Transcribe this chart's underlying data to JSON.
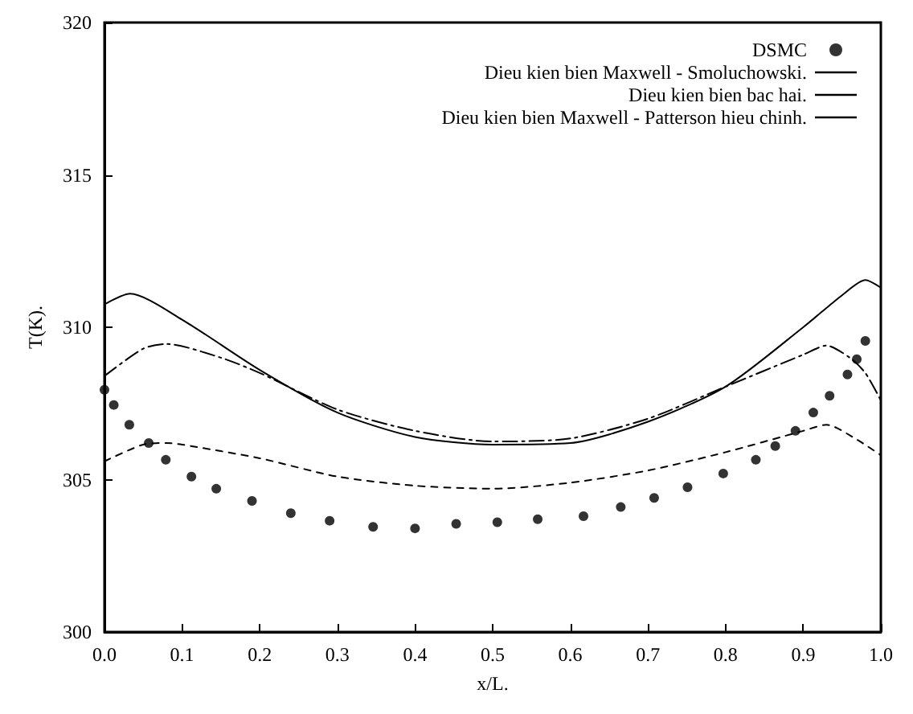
{
  "chart_data": {
    "type": "line",
    "xlabel": "x/L.",
    "ylabel": "T(K).",
    "xlim": [
      0,
      1
    ],
    "ylim": [
      300,
      320
    ],
    "xticks": [
      {
        "value": 0,
        "label": "0.0"
      },
      0.1,
      0.2,
      0.3,
      0.4,
      0.5,
      0.6,
      0.7,
      0.8,
      0.9,
      {
        "value": 1,
        "label": "1.0"
      }
    ],
    "yticks": [
      300,
      305,
      310,
      315,
      320
    ],
    "grid": false,
    "legend": "top right",
    "series": [
      {
        "name": "DSMC",
        "type": "scatter",
        "marker": "circle",
        "color": "#000000",
        "x": [
          0.0,
          0.012,
          0.032,
          0.057,
          0.079,
          0.112,
          0.144,
          0.19,
          0.24,
          0.29,
          0.346,
          0.4,
          0.453,
          0.506,
          0.558,
          0.617,
          0.665,
          0.708,
          0.751,
          0.797,
          0.839,
          0.864,
          0.89,
          0.913,
          0.934,
          0.957,
          0.969,
          0.98
        ],
        "values": [
          307.95,
          307.45,
          306.8,
          306.2,
          305.65,
          305.1,
          304.7,
          304.3,
          303.9,
          303.65,
          303.45,
          303.4,
          303.55,
          303.6,
          303.7,
          303.8,
          304.1,
          304.4,
          304.75,
          305.2,
          305.65,
          306.1,
          306.6,
          307.2,
          307.75,
          308.45,
          308.95,
          309.55
        ]
      },
      {
        "name": "Dieu kien bien Maxwell - Smoluchowski.",
        "line_style": "dashed",
        "color": "#000000",
        "x": [
          0,
          0.05,
          0.08,
          0.1,
          0.2,
          0.3,
          0.4,
          0.5,
          0.6,
          0.7,
          0.8,
          0.9,
          0.93,
          0.97,
          1.0
        ],
        "values": [
          305.6,
          306.15,
          306.2,
          306.15,
          305.7,
          305.1,
          304.8,
          304.7,
          304.9,
          305.3,
          305.9,
          306.6,
          306.8,
          306.3,
          305.8
        ]
      },
      {
        "name": "Dieu kien bien bac hai.",
        "line_style": "dotted",
        "color": "#000000",
        "x": [
          0,
          0.05,
          0.08,
          0.15,
          0.2,
          0.3,
          0.4,
          0.5,
          0.6,
          0.7,
          0.8,
          0.9,
          0.93,
          0.96,
          0.98,
          1.0
        ],
        "values": [
          308.4,
          309.3,
          309.45,
          309.0,
          308.5,
          307.3,
          306.6,
          306.25,
          306.35,
          307.0,
          308.05,
          309.1,
          309.4,
          309.0,
          308.5,
          307.6
        ]
      },
      {
        "name": "Dieu kien bien Maxwell - Patterson hieu chinh.",
        "line_style": "solid",
        "color": "#000000",
        "x": [
          0,
          0.033,
          0.1,
          0.2,
          0.3,
          0.4,
          0.5,
          0.6,
          0.7,
          0.8,
          0.9,
          0.95,
          0.98,
          1.0
        ],
        "values": [
          310.75,
          311.1,
          310.25,
          308.6,
          307.2,
          306.4,
          306.15,
          306.2,
          306.9,
          308.05,
          310.0,
          311.05,
          311.55,
          311.3
        ]
      }
    ]
  }
}
